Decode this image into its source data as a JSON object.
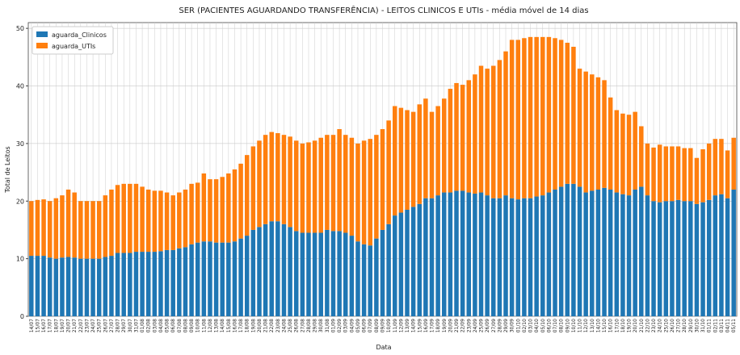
{
  "chart_data": {
    "type": "stacked_bar",
    "title": "SER (PACIENTES AGUARDANDO TRANSFERÊNCIA) - LEITOS CLINICOS E UTIs - média móvel de 14 dias",
    "x_label": "Data",
    "y_label": "Total de Leitos",
    "categories": [
      "14/07",
      "15/07",
      "16/07",
      "17/07",
      "18/07",
      "19/07",
      "20/07",
      "21/07",
      "22/07",
      "23/07",
      "24/07",
      "25/07",
      "26/07",
      "27/07",
      "28/07",
      "29/07",
      "30/07",
      "31/07",
      "01/08",
      "02/08",
      "03/08",
      "04/08",
      "05/08",
      "06/08",
      "07/08",
      "08/08",
      "09/08",
      "10/08",
      "11/08",
      "12/08",
      "13/08",
      "14/08",
      "15/08",
      "16/08",
      "17/08",
      "18/08",
      "19/08",
      "20/08",
      "21/08",
      "22/08",
      "23/08",
      "24/08",
      "25/08",
      "26/08",
      "27/08",
      "28/08",
      "29/08",
      "30/08",
      "31/08",
      "01/09",
      "02/09",
      "03/09",
      "04/09",
      "05/09",
      "06/09",
      "07/09",
      "08/09",
      "09/09",
      "10/09",
      "11/09",
      "12/09",
      "13/09",
      "14/09",
      "15/09",
      "16/09",
      "17/09",
      "18/09",
      "19/09",
      "20/09",
      "21/09",
      "22/09",
      "23/09",
      "24/09",
      "25/09",
      "26/09",
      "27/09",
      "28/09",
      "29/09",
      "30/09",
      "01/10",
      "02/10",
      "03/10",
      "04/10",
      "05/10",
      "06/10",
      "07/10",
      "08/10",
      "09/10",
      "10/10",
      "11/10",
      "12/10",
      "13/10",
      "14/10",
      "15/10",
      "16/10",
      "17/10",
      "18/10",
      "19/10",
      "20/10",
      "21/10",
      "22/10",
      "23/10",
      "24/10",
      "25/10",
      "26/10",
      "27/10",
      "28/10",
      "29/10",
      "30/10",
      "31/10",
      "01/11",
      "02/11",
      "03/11",
      "04/11",
      "05/11"
    ],
    "series": [
      {
        "name": "aguarda_Clinicos",
        "color": "#1f77b4",
        "values": [
          10.5,
          10.5,
          10.5,
          10.2,
          10,
          10.2,
          10.3,
          10.2,
          10,
          10,
          10,
          10,
          10.3,
          10.5,
          11,
          11,
          11,
          11.2,
          11.2,
          11.2,
          11.2,
          11.3,
          11.5,
          11.5,
          11.8,
          12,
          12.5,
          12.8,
          13,
          13,
          12.8,
          12.8,
          12.8,
          13,
          13.5,
          14,
          15,
          15.5,
          16,
          16.5,
          16.5,
          16,
          15.5,
          14.8,
          14.5,
          14.5,
          14.5,
          14.5,
          15,
          14.8,
          14.8,
          14.5,
          14,
          13,
          12.5,
          12.3,
          13.5,
          15,
          16,
          17.5,
          18,
          18.5,
          19,
          19.5,
          20.5,
          20.5,
          21,
          21.5,
          21.5,
          21.8,
          21.8,
          21.5,
          21.3,
          21.5,
          21,
          20.5,
          20.5,
          21,
          20.5,
          20.3,
          20.5,
          20.5,
          20.8,
          21,
          21.5,
          22,
          22.5,
          23,
          23,
          22.5,
          21.5,
          21.8,
          22,
          22.3,
          22,
          21.5,
          21.2,
          21,
          22,
          22.5,
          21,
          20,
          19.8,
          20,
          20,
          20.2,
          20,
          20,
          19.5,
          19.8,
          20.2,
          21,
          21.2,
          20.5,
          22
        ]
      },
      {
        "name": "aguarda_UTIs",
        "color": "#ff7f0e",
        "values": [
          9.5,
          9.7,
          9.8,
          9.8,
          10.5,
          10.8,
          11.7,
          11.3,
          10,
          10,
          10,
          10,
          10.7,
          11.5,
          11.8,
          12,
          12,
          11.8,
          11.3,
          10.8,
          10.6,
          10.5,
          10,
          9.5,
          9.7,
          10,
          10.5,
          10.4,
          11.8,
          10.8,
          11,
          11.4,
          12,
          12.5,
          13,
          14,
          14.5,
          15,
          15.5,
          15.5,
          15.3,
          15.5,
          15.7,
          15.7,
          15.5,
          15.7,
          16,
          16.5,
          16.5,
          16.7,
          17.7,
          17,
          17,
          17,
          18,
          18.5,
          18,
          17.5,
          18,
          19,
          18.2,
          17.3,
          16.5,
          17.3,
          17.3,
          15,
          15.5,
          16.3,
          18,
          18.7,
          18.4,
          19.5,
          20.7,
          22,
          22,
          23,
          24,
          25,
          27.5,
          27.7,
          27.8,
          28,
          27.7,
          27.5,
          27,
          26.3,
          25.5,
          24.5,
          23.8,
          20.5,
          21,
          20.2,
          19.5,
          18.7,
          16,
          14.3,
          14,
          14,
          13.5,
          10.5,
          9,
          9.3,
          10,
          9.5,
          9.5,
          9.3,
          9.2,
          9.2,
          8,
          9.2,
          9.8,
          9.8,
          9.6,
          8.3,
          9
        ]
      }
    ],
    "ylim": [
      0,
      51
    ],
    "yticks": [
      0,
      10,
      20,
      30,
      40,
      50
    ],
    "grid": true,
    "legend": "upper left"
  }
}
